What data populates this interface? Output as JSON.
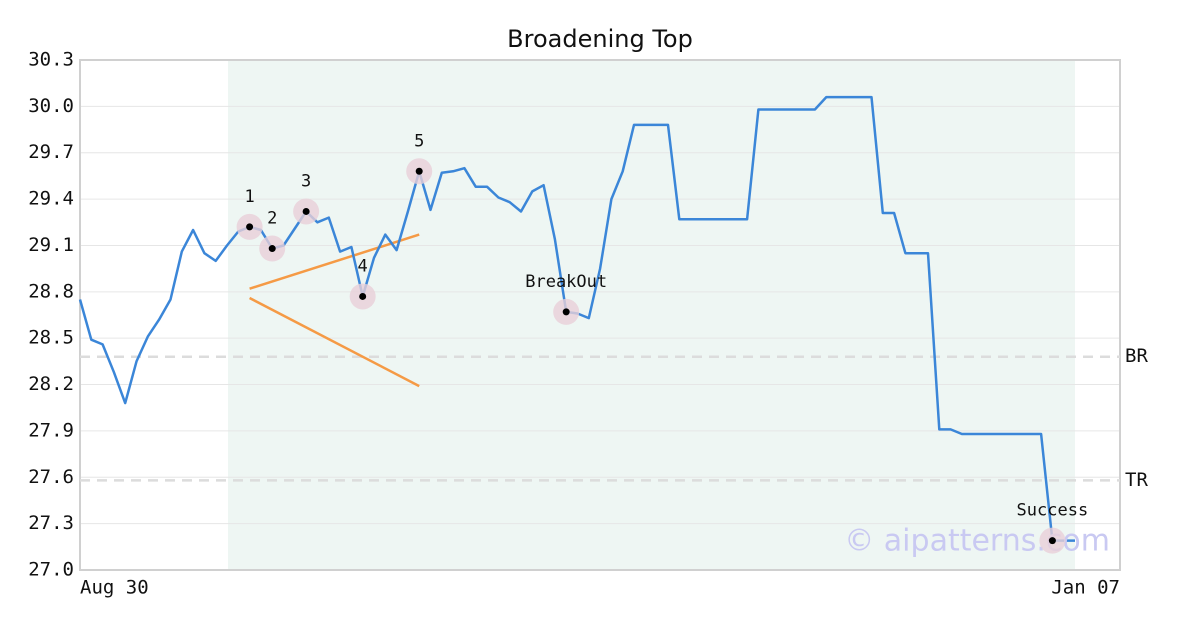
{
  "chart_data": {
    "type": "line",
    "title": "Broadening Top",
    "categories": [
      "Aug 30",
      null,
      null,
      null,
      null,
      null,
      null,
      null,
      null,
      null,
      null,
      null,
      null,
      null,
      null,
      null,
      null,
      null,
      null,
      null,
      null,
      null,
      null,
      null,
      null,
      null,
      null,
      null,
      null,
      null,
      null,
      null,
      null,
      null,
      null,
      null,
      null,
      null,
      null,
      null,
      null,
      null,
      null,
      null,
      null,
      null,
      null,
      null,
      null,
      null,
      null,
      null,
      null,
      null,
      null,
      null,
      null,
      null,
      null,
      null,
      null,
      null,
      null,
      null,
      null,
      null,
      null,
      null,
      null,
      null,
      null,
      null,
      null,
      null,
      null,
      null,
      null,
      null,
      null,
      null,
      null,
      null,
      null,
      null,
      null,
      null,
      null,
      null,
      "Jan 07"
    ],
    "values": [
      28.75,
      28.49,
      28.46,
      28.28,
      28.08,
      28.35,
      28.51,
      28.62,
      28.75,
      29.06,
      29.2,
      29.05,
      29.0,
      29.1,
      29.19,
      29.22,
      29.2,
      29.08,
      29.1,
      29.21,
      29.32,
      29.25,
      29.28,
      29.06,
      29.09,
      28.77,
      29.02,
      29.17,
      29.07,
      29.32,
      29.58,
      29.33,
      29.57,
      29.58,
      29.6,
      29.48,
      29.48,
      29.41,
      29.38,
      29.32,
      29.45,
      29.49,
      29.14,
      28.67,
      28.66,
      28.63,
      28.95,
      29.4,
      29.58,
      29.88,
      29.88,
      29.88,
      29.88,
      29.27,
      29.27,
      29.27,
      29.27,
      29.27,
      29.27,
      29.27,
      29.98,
      29.98,
      29.98,
      29.98,
      29.98,
      29.98,
      30.06,
      30.06,
      30.06,
      30.06,
      30.06,
      29.31,
      29.31,
      29.05,
      29.05,
      29.05,
      27.91,
      27.91,
      27.88,
      27.88,
      27.88,
      27.88,
      27.88,
      27.88,
      27.88,
      27.88,
      27.19,
      27.19,
      27.19
    ],
    "color": "#3b86d8",
    "point_labels": [
      null,
      null,
      null,
      null,
      null,
      null,
      null,
      null,
      null,
      null,
      null,
      null,
      null,
      null,
      null,
      "1",
      null,
      "2",
      null,
      null,
      "3",
      null,
      null,
      null,
      null,
      "4",
      null,
      null,
      null,
      null,
      "5",
      null,
      null,
      null,
      null,
      null,
      null,
      null,
      null,
      null,
      null,
      null,
      null,
      "BreakOut",
      null,
      null,
      null,
      null,
      null,
      null,
      null,
      null,
      null,
      null,
      null,
      null,
      null,
      null,
      null,
      null,
      null,
      null,
      null,
      null,
      null,
      null,
      null,
      null,
      null,
      null,
      null,
      null,
      null,
      null,
      null,
      null,
      null,
      null,
      null,
      null,
      null,
      null,
      null,
      null,
      null,
      null,
      "Success",
      null,
      null
    ],
    "trendlines": [
      {
        "color": "#f59a45",
        "values": [
          null,
          null,
          null,
          null,
          null,
          null,
          null,
          null,
          null,
          null,
          null,
          null,
          null,
          null,
          null,
          28.82,
          null,
          null,
          null,
          null,
          null,
          null,
          null,
          null,
          null,
          null,
          null,
          null,
          null,
          null,
          29.17,
          null,
          null,
          null,
          null,
          null,
          null,
          null,
          null,
          null,
          null,
          null,
          null,
          null,
          null,
          null,
          null,
          null,
          null,
          null,
          null,
          null,
          null,
          null,
          null,
          null,
          null,
          null,
          null,
          null,
          null,
          null,
          null,
          null,
          null,
          null,
          null,
          null,
          null,
          null,
          null,
          null,
          null,
          null,
          null,
          null,
          null,
          null,
          null,
          null,
          null,
          null,
          null,
          null,
          null,
          null,
          null,
          null,
          null
        ]
      },
      {
        "color": "#f59a45",
        "values": [
          null,
          null,
          null,
          null,
          null,
          null,
          null,
          null,
          null,
          null,
          null,
          null,
          null,
          null,
          null,
          28.76,
          null,
          null,
          null,
          null,
          null,
          null,
          null,
          null,
          null,
          null,
          null,
          null,
          null,
          null,
          28.19,
          null,
          null,
          null,
          null,
          null,
          null,
          null,
          null,
          null,
          null,
          null,
          null,
          null,
          null,
          null,
          null,
          null,
          null,
          null,
          null,
          null,
          null,
          null,
          null,
          null,
          null,
          null,
          null,
          null,
          null,
          null,
          null,
          null,
          null,
          null,
          null,
          null,
          null,
          null,
          null,
          null,
          null,
          null,
          null,
          null,
          null,
          null,
          null,
          null,
          null,
          null,
          null,
          null,
          null,
          null,
          null,
          null,
          null
        ]
      }
    ],
    "hlines": [
      {
        "label": "BR",
        "value": 28.38
      },
      {
        "label": "TR",
        "value": 27.58
      }
    ],
    "watermark": "© aipatterns.com",
    "ylim": [
      27.0,
      30.3
    ],
    "yticks": [
      {
        "value": 27.0,
        "label": "27.0"
      },
      27.3,
      27.6,
      27.9,
      28.2,
      28.5,
      28.8,
      29.1,
      29.4,
      29.7,
      {
        "value": 30.0,
        "label": "30.0"
      },
      30.3
    ],
    "grid": true
  }
}
